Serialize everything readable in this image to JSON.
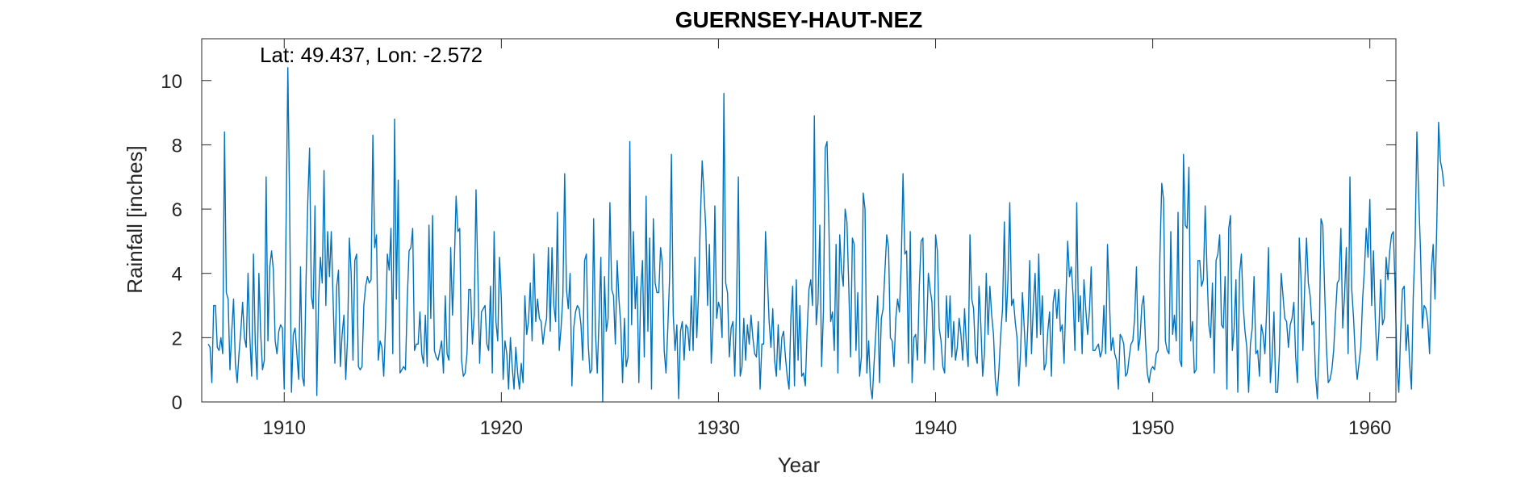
{
  "chart_data": {
    "type": "line",
    "title": "GUERNSEY-HAUT-NEZ",
    "annotation": "Lat: 49.437, Lon: -2.572",
    "xlabel": "Year",
    "ylabel": "Rainfall [inches]",
    "xlim": [
      1906.2,
      1961.2
    ],
    "ylim": [
      0,
      11.3
    ],
    "xticks": [
      1910,
      1920,
      1930,
      1940,
      1950,
      1960
    ],
    "yticks": [
      0,
      2,
      4,
      6,
      8,
      10
    ],
    "grid": false,
    "line_color": "#0072BD",
    "series": [
      {
        "x_start": 1906.5,
        "x_step": 0.0833333,
        "values": [
          1.8,
          1.7,
          0.6,
          3.0,
          3.0,
          1.7,
          1.6,
          2.0,
          1.5,
          8.4,
          3.4,
          3.2,
          1.0,
          2.2,
          3.2,
          1.2,
          0.6,
          1.5,
          2.2,
          3.1,
          2.0,
          1.7,
          4.0,
          2.0,
          0.8,
          4.6,
          1.8,
          0.7,
          4.0,
          2.1,
          1.0,
          1.3,
          7.0,
          1.9,
          4.2,
          4.7,
          4.1,
          1.9,
          1.5,
          2.2,
          2.4,
          2.3,
          0.4,
          5.4,
          10.4,
          6.0,
          0.3,
          2.1,
          2.3,
          1.5,
          0.7,
          4.2,
          0.8,
          0.5,
          3.6,
          6.2,
          7.9,
          3.3,
          2.9,
          6.1,
          0.2,
          3.2,
          4.5,
          3.7,
          7.2,
          3.0,
          5.3,
          3.9,
          5.3,
          3.2,
          1.2,
          3.6,
          4.1,
          1.1,
          2.1,
          2.7,
          0.7,
          2.0,
          5.1,
          4.0,
          1.3,
          4.4,
          4.6,
          1.1,
          1.0,
          1.1,
          3.0,
          3.6,
          3.9,
          3.7,
          3.8,
          8.3,
          4.8,
          5.2,
          1.3,
          1.9,
          1.7,
          0.8,
          2.4,
          4.6,
          4.1,
          5.4,
          1.5,
          8.8,
          3.2,
          6.9,
          0.9,
          1.0,
          1.1,
          1.0,
          3.2,
          4.7,
          4.8,
          5.4,
          1.6,
          1.8,
          1.8,
          2.8,
          1.5,
          1.2,
          2.7,
          1.1,
          5.5,
          2.6,
          5.8,
          1.6,
          1.4,
          1.3,
          1.6,
          1.9,
          0.9,
          3.3,
          1.5,
          1.3,
          4.8,
          2.7,
          4.3,
          6.4,
          5.3,
          5.4,
          1.3,
          0.8,
          0.9,
          1.5,
          3.5,
          3.5,
          1.8,
          2.7,
          6.6,
          4.0,
          1.2,
          2.8,
          2.9,
          3.0,
          1.8,
          1.6,
          3.6,
          0.9,
          5.3,
          2.5,
          1.9,
          4.5,
          3.2,
          0.7,
          1.9,
          1.5,
          0.4,
          2.0,
          1.1,
          0.4,
          1.7,
          0.9,
          0.4,
          1.2,
          0.6,
          3.3,
          2.1,
          2.5,
          3.7,
          1.9,
          4.6,
          2.5,
          3.2,
          2.6,
          2.5,
          1.8,
          2.3,
          2.6,
          4.8,
          2.2,
          4.8,
          3.0,
          2.5,
          5.9,
          1.6,
          2.3,
          3.3,
          7.1,
          3.5,
          2.9,
          4.0,
          0.5,
          2.3,
          2.8,
          3.0,
          2.9,
          2.4,
          1.3,
          4.4,
          4.6,
          1.8,
          0.9,
          1.0,
          5.7,
          2.2,
          0.9,
          2.6,
          4.5,
          0.0,
          3.9,
          2.2,
          2.6,
          6.2,
          3.5,
          3.3,
          1.8,
          4.4,
          3.2,
          2.4,
          0.6,
          2.6,
          1.1,
          1.4,
          8.1,
          2.4,
          5.3,
          2.9,
          3.9,
          0.6,
          3.4,
          4.4,
          1.4,
          6.4,
          2.2,
          5.1,
          0.4,
          5.7,
          3.7,
          3.4,
          3.4,
          4.8,
          4.3,
          1.6,
          0.9,
          2.3,
          3.9,
          7.7,
          2.7,
          1.6,
          2.4,
          0.1,
          2.2,
          2.5,
          1.3,
          2.4,
          2.3,
          1.6,
          3.3,
          1.6,
          4.5,
          2.0,
          3.4,
          5.7,
          7.5,
          6.5,
          5.4,
          3.0,
          4.9,
          1.2,
          2.4,
          6.1,
          2.6,
          3.1,
          2.9,
          2.0,
          9.6,
          3.7,
          3.4,
          1.4,
          2.3,
          2.5,
          0.8,
          3.0,
          7.0,
          0.8,
          1.1,
          2.6,
          1.3,
          2.4,
          1.8,
          2.7,
          2.0,
          1.5,
          1.4,
          2.5,
          0.4,
          1.8,
          1.8,
          5.3,
          3.9,
          2.5,
          1.7,
          2.9,
          1.3,
          0.8,
          2.4,
          1.0,
          2.0,
          2.2,
          1.4,
          0.8,
          0.4,
          2.6,
          3.6,
          0.5,
          3.8,
          1.3,
          3.0,
          0.8,
          0.9,
          0.5,
          2.2,
          3.5,
          3.8,
          3.0,
          8.9,
          2.4,
          3.1,
          5.5,
          1.1,
          2.8,
          7.9,
          8.1,
          5.6,
          2.5,
          2.8,
          1.6,
          4.9,
          0.9,
          5.2,
          4.1,
          3.6,
          6.0,
          5.6,
          3.6,
          1.4,
          5.1,
          4.9,
          1.6,
          3.4,
          0.8,
          1.4,
          6.5,
          6.0,
          0.9,
          1.9,
          0.5,
          0.1,
          1.2,
          2.2,
          3.3,
          0.6,
          2.6,
          2.9,
          4.1,
          5.2,
          4.8,
          2.0,
          1.9,
          1.1,
          2.6,
          3.2,
          2.8,
          4.3,
          7.1,
          4.6,
          4.7,
          1.2,
          5.3,
          0.6,
          2.0,
          2.1,
          1.3,
          3.6,
          5.0,
          5.1,
          1.2,
          2.2,
          4.0,
          3.5,
          3.1,
          1.0,
          5.2,
          4.7,
          2.3,
          1.9,
          1.1,
          0.9,
          3.3,
          2.0,
          3.3,
          1.4,
          2.5,
          1.3,
          1.7,
          2.6,
          2.1,
          1.3,
          2.9,
          1.8,
          1.1,
          5.2,
          3.2,
          2.9,
          1.5,
          1.2,
          3.6,
          2.4,
          0.8,
          1.5,
          4.0,
          2.1,
          3.6,
          2.7,
          2.1,
          0.7,
          0.2,
          1.0,
          2.1,
          2.9,
          5.6,
          2.5,
          3.8,
          6.2,
          3.0,
          3.2,
          2.5,
          2.0,
          0.5,
          1.6,
          3.4,
          2.3,
          1.1,
          2.4,
          4.4,
          1.5,
          3.0,
          4.0,
          2.0,
          4.6,
          2.1,
          3.3,
          1.0,
          1.2,
          2.2,
          2.8,
          0.8,
          3.1,
          3.5,
          2.6,
          3.5,
          2.2,
          2.4,
          1.2,
          3.2,
          5.0,
          3.9,
          4.2,
          3.3,
          1.6,
          6.2,
          2.5,
          3.3,
          1.5,
          3.8,
          2.9,
          2.1,
          2.8,
          4.2,
          1.6,
          1.6,
          1.7,
          1.8,
          1.4,
          1.6,
          3.0,
          1.5,
          4.9,
          3.3,
          1.6,
          2.0,
          1.5,
          1.3,
          0.4,
          2.1,
          2.0,
          1.8,
          0.8,
          0.9,
          1.4,
          1.8,
          1.9,
          2.6,
          4.2,
          1.6,
          2.0,
          3.0,
          3.3,
          1.9,
          0.9,
          0.6,
          1.0,
          1.1,
          1.0,
          1.5,
          1.6,
          4.6,
          6.8,
          6.3,
          1.9,
          1.6,
          1.5,
          5.3,
          2.1,
          2.7,
          1.9,
          5.9,
          1.3,
          1.1,
          7.7,
          5.5,
          5.4,
          7.3,
          1.9,
          2.5,
          0.9,
          1.0,
          4.4,
          4.4,
          3.6,
          3.8,
          6.1,
          4.1,
          2.4,
          2.0,
          3.7,
          0.9,
          4.4,
          4.6,
          5.2,
          2.4,
          2.3,
          3.9,
          0.4,
          5.4,
          5.8,
          1.6,
          2.3,
          3.8,
          0.3,
          4.0,
          4.6,
          3.0,
          2.2,
          1.7,
          0.3,
          1.8,
          2.3,
          3.9,
          1.5,
          1.6,
          0.8,
          2.4,
          2.1,
          1.5,
          2.9,
          4.8,
          0.6,
          1.4,
          2.8,
          0.3,
          0.3,
          1.5,
          4.0,
          3.3,
          2.6,
          2.5,
          1.7,
          2.4,
          2.6,
          3.1,
          1.4,
          0.6,
          5.1,
          3.8,
          1.6,
          3.6,
          5.1,
          3.7,
          3.3,
          2.4,
          2.5,
          0.8,
          0.1,
          1.8,
          5.7,
          5.5,
          3.5,
          1.7,
          0.6,
          0.7,
          1.0,
          1.6,
          2.7,
          3.7,
          3.8,
          5.4,
          2.3,
          3.3,
          4.8,
          1.5,
          7.0,
          3.5,
          2.6,
          1.4,
          0.7,
          1.2,
          1.7,
          3.2,
          4.1,
          5.4,
          4.5,
          6.3,
          3.0,
          4.7,
          2.6,
          1.3,
          2.2,
          3.8,
          2.4,
          2.6,
          4.5,
          3.8,
          4.7,
          5.2,
          5.3,
          3.5,
          1.1,
          0.3,
          2.1,
          3.5,
          3.6,
          1.6,
          2.4,
          1.2,
          0.4,
          3.3,
          4.9,
          8.4,
          6.4,
          4.7,
          2.3,
          3.0,
          2.9,
          2.5,
          1.5,
          4.1,
          4.9,
          3.2,
          5.5,
          8.7,
          7.5,
          7.2,
          6.7
        ]
      }
    ]
  }
}
